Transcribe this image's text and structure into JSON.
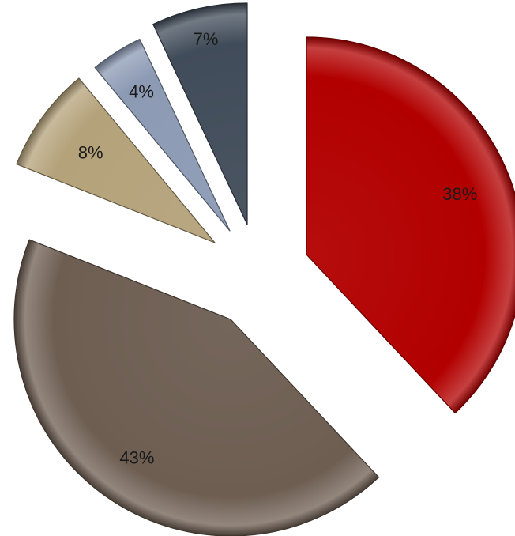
{
  "chart_data": {
    "type": "pie",
    "exploded": true,
    "legend": "none",
    "title": "",
    "slices": [
      {
        "label": "38%",
        "value": 38,
        "color": "#b20000"
      },
      {
        "label": "43%",
        "value": 43,
        "color": "#6e5e52"
      },
      {
        "label": "8%",
        "value": 8,
        "color": "#b4a27a"
      },
      {
        "label": "4%",
        "value": 4,
        "color": "#8c9ab4"
      },
      {
        "label": "7%",
        "value": 7,
        "color": "#414c5a"
      }
    ]
  }
}
